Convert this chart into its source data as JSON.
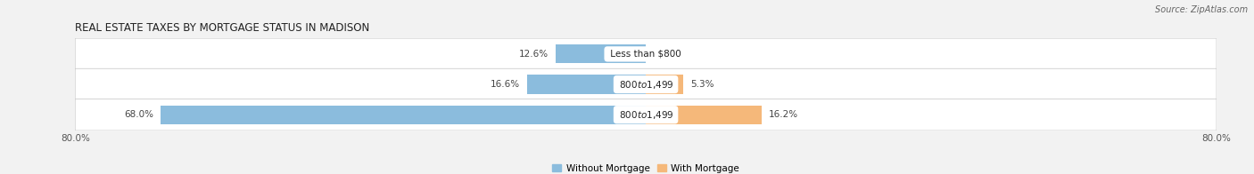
{
  "title": "REAL ESTATE TAXES BY MORTGAGE STATUS IN MADISON",
  "source_text": "Source: ZipAtlas.com",
  "categories": [
    "Less than $800",
    "$800 to $1,499",
    "$800 to $1,499"
  ],
  "without_mortgage": [
    12.6,
    16.6,
    68.0
  ],
  "with_mortgage": [
    0.0,
    5.3,
    16.2
  ],
  "color_without": "#8BBCDD",
  "color_with": "#F5B87A",
  "xlim": 80.0,
  "bar_height": 0.62,
  "bg_color": "#F2F2F2",
  "title_fontsize": 8.5,
  "label_fontsize": 7.5,
  "cat_fontsize": 7.5,
  "tick_fontsize": 7.5,
  "source_fontsize": 7.0,
  "legend_fontsize": 7.5
}
